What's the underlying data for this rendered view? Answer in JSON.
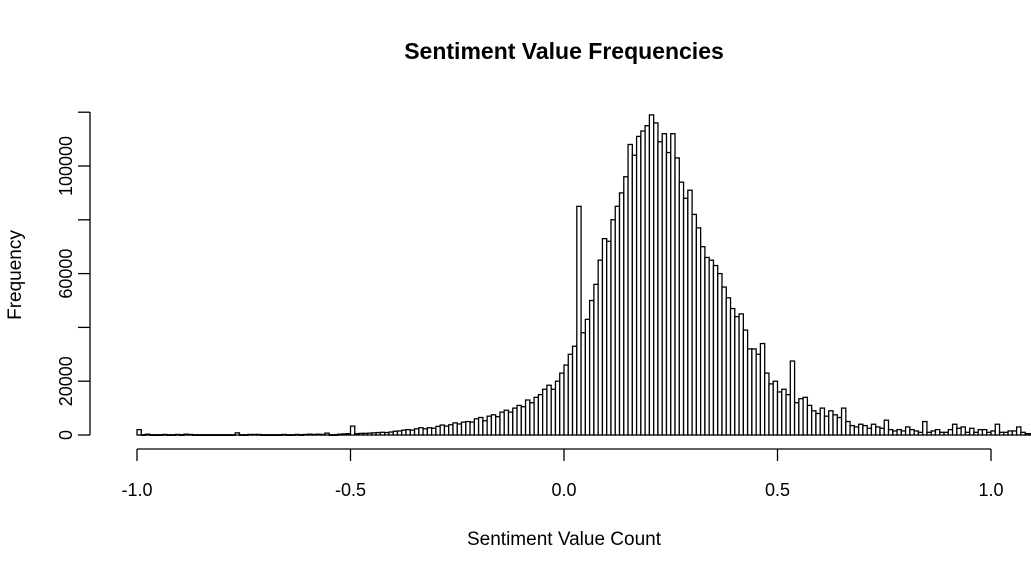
{
  "chart_data": {
    "type": "bar",
    "title": "Sentiment Value Frequencies",
    "xlabel": "Sentiment Value Count",
    "ylabel": "Frequency",
    "xlim": [
      -1.0,
      1.0
    ],
    "ylim": [
      0,
      120000
    ],
    "x_ticks": [
      -1.0,
      -0.5,
      0.0,
      0.5,
      1.0
    ],
    "x_tick_labels": [
      "-1.0",
      "-0.5",
      "0.0",
      "0.5",
      "1.0"
    ],
    "y_ticks": [
      0,
      20000,
      60000,
      100000
    ],
    "y_tick_labels": [
      "0",
      "20000",
      "60000",
      "100000"
    ],
    "bin_width": 0.01,
    "bin_start": -1.0,
    "values": [
      2000,
      100,
      300,
      100,
      100,
      100,
      200,
      100,
      100,
      200,
      100,
      300,
      200,
      100,
      100,
      100,
      100,
      100,
      100,
      100,
      100,
      100,
      100,
      800,
      100,
      100,
      200,
      200,
      200,
      100,
      100,
      100,
      100,
      100,
      200,
      100,
      100,
      200,
      100,
      200,
      300,
      200,
      300,
      200,
      700,
      100,
      100,
      300,
      400,
      500,
      3300,
      500,
      600,
      600,
      700,
      800,
      900,
      1000,
      900,
      1100,
      1400,
      1500,
      1800,
      2000,
      1800,
      2300,
      2700,
      2300,
      2700,
      2500,
      3200,
      3700,
      3300,
      3800,
      4500,
      4100,
      4800,
      5000,
      4800,
      6000,
      6500,
      5300,
      7000,
      7500,
      6800,
      8500,
      9200,
      8500,
      10000,
      11000,
      10500,
      13000,
      12000,
      14000,
      15000,
      17000,
      18500,
      17000,
      20000,
      23000,
      26000,
      30000,
      33000,
      85000,
      38000,
      43000,
      50000,
      56000,
      65000,
      73000,
      72000,
      80000,
      85000,
      90000,
      96000,
      108000,
      104000,
      111000,
      113000,
      115000,
      119000,
      116000,
      109000,
      112000,
      105000,
      112000,
      103000,
      94000,
      88000,
      91000,
      82000,
      77000,
      70000,
      66000,
      65000,
      63000,
      60000,
      55000,
      51000,
      47000,
      44000,
      45000,
      39000,
      32000,
      32000,
      30000,
      34000,
      23000,
      19000,
      20000,
      16000,
      17000,
      15000,
      27500,
      12000,
      13500,
      14000,
      11000,
      9000,
      8000,
      10000,
      7000,
      9000,
      7500,
      6500,
      10000,
      5000,
      3500,
      3000,
      4000,
      3500,
      2500,
      4000,
      3000,
      2500,
      5500,
      2000,
      1500,
      2000,
      1500,
      3000,
      2000,
      1500,
      1000,
      5000,
      1000,
      1500,
      2000,
      1000,
      1000,
      2000,
      4000,
      2500,
      3000,
      1000,
      2500,
      1000,
      2000,
      2000,
      1000,
      1500,
      4000,
      1000,
      1000,
      1500,
      1500,
      3000,
      1000,
      500,
      500,
      1200,
      800,
      1000,
      1000,
      500,
      500,
      500,
      300,
      7000
    ]
  }
}
